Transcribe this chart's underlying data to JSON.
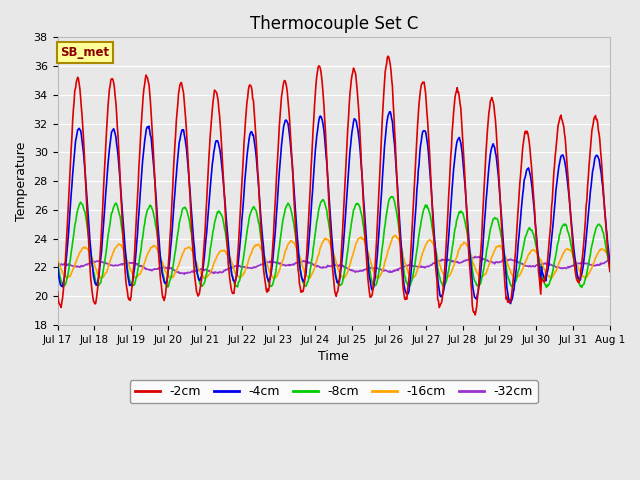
{
  "title": "Thermocouple Set C",
  "xlabel": "Time",
  "ylabel": "Temperature",
  "ylim": [
    18,
    38
  ],
  "yticks": [
    18,
    20,
    22,
    24,
    26,
    28,
    30,
    32,
    34,
    36,
    38
  ],
  "xtick_labels": [
    "Jul 17",
    "Jul 18",
    "Jul 19",
    "Jul 20",
    "Jul 21",
    "Jul 22",
    "Jul 23",
    "Jul 24",
    "Jul 25",
    "Jul 26",
    "Jul 27",
    "Jul 28",
    "Jul 29",
    "Jul 30",
    "Jul 31",
    "Aug 1"
  ],
  "series_colors": {
    "-2cm": "#dd0000",
    "-4cm": "#0000ee",
    "-8cm": "#00cc00",
    "-16cm": "#ffa500",
    "-32cm": "#9932cc"
  },
  "annotation_text": "SB_met",
  "bg_color": "#e8e8e8",
  "plot_bg_color": "#e8e8e8",
  "peaks_2cm": [
    35.1,
    35.2,
    35.3,
    34.8,
    34.3,
    34.7,
    35.0,
    36.0,
    35.8,
    36.7,
    35.0,
    34.4,
    33.8,
    31.5,
    32.5
  ],
  "peaks_4cm": [
    31.7,
    31.6,
    31.8,
    31.5,
    30.8,
    31.4,
    32.3,
    32.5,
    32.3,
    32.8,
    31.6,
    31.0,
    30.5,
    28.9,
    29.8
  ],
  "peaks_8cm": [
    26.5,
    26.4,
    26.3,
    26.2,
    25.9,
    26.2,
    26.4,
    26.7,
    26.5,
    27.0,
    26.3,
    25.9,
    25.5,
    24.7,
    25.0
  ],
  "peaks_16cm": [
    23.4,
    23.6,
    23.5,
    23.4,
    23.2,
    23.6,
    23.8,
    24.0,
    24.1,
    24.2,
    23.9,
    23.7,
    23.5,
    23.2,
    23.3
  ],
  "troughs_2cm": [
    19.2,
    19.5,
    19.7,
    19.8,
    20.0,
    20.2,
    20.3,
    20.2,
    20.1,
    19.9,
    19.8,
    19.3,
    18.8,
    19.5,
    21.0
  ],
  "troughs_4cm": [
    20.7,
    20.8,
    20.7,
    20.9,
    21.1,
    21.0,
    21.1,
    21.0,
    20.9,
    20.5,
    20.1,
    20.0,
    19.8,
    19.6,
    21.2
  ]
}
